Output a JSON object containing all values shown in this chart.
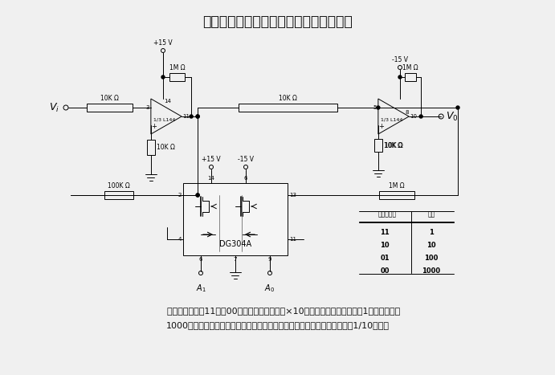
{
  "title": "用二进制数控制增益的低功率低频放大器",
  "bg_color": "#f0f0f0",
  "text_color": "#000000",
  "line_color": "#000000",
  "body_text_line1": "    当二进制输入由11降到00时，放大器的增益以×10的倍数递增，最小增益为1而最大增益为",
  "body_text_line2": "1000。由于在这种类型的放大器中，开关是静态的，因而开关的功耗将小于1/10毫瓦。",
  "table_rows": [
    [
      "11",
      "1"
    ],
    [
      "10",
      "10"
    ],
    [
      "01",
      "100"
    ],
    [
      "00",
      "1000"
    ]
  ]
}
